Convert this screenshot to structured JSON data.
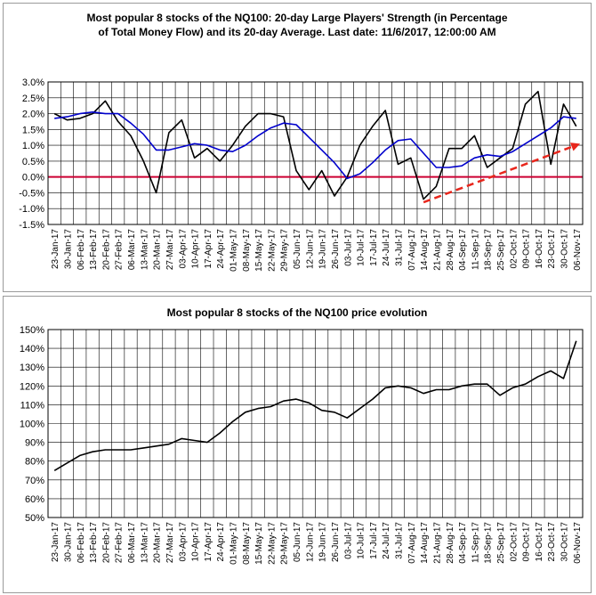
{
  "chart_data": [
    {
      "type": "line",
      "title_lines": [
        "Most popular 8 stocks of the NQ100: 20-day Large Players' Strength (in Percentage",
        "of Total Money Flow) and its 20-day Average. Last date: 11/6/2017, 12:00:00 AM"
      ],
      "y_unit": "%",
      "ylim": [
        -1.5,
        3.0
      ],
      "yticks": [
        "3.0%",
        "2.5%",
        "2.0%",
        "1.5%",
        "1.0%",
        "0.5%",
        "0.0%",
        "-0.5%",
        "-1.0%",
        "-1.5%"
      ],
      "ytick_values": [
        3.0,
        2.5,
        2.0,
        1.5,
        1.0,
        0.5,
        0.0,
        -0.5,
        -1.0,
        -1.5
      ],
      "xticks": [
        "23-Jan-17",
        "30-Jan-17",
        "06-Feb-17",
        "13-Feb-17",
        "20-Feb-17",
        "27-Feb-17",
        "06-Mar-17",
        "13-Mar-17",
        "20-Mar-17",
        "27-Mar-17",
        "03-Apr-17",
        "10-Apr-17",
        "17-Apr-17",
        "24-Apr-17",
        "01-May-17",
        "08-May-17",
        "15-May-17",
        "22-May-17",
        "29-May-17",
        "05-Jun-17",
        "12-Jun-17",
        "19-Jun-17",
        "26-Jun-17",
        "03-Jul-17",
        "10-Jul-17",
        "17-Jul-17",
        "24-Jul-17",
        "31-Jul-17",
        "07-Aug-17",
        "14-Aug-17",
        "21-Aug-17",
        "28-Aug-17",
        "04-Sep-17",
        "11-Sep-17",
        "18-Sep-17",
        "25-Sep-17",
        "02-Oct-17",
        "09-Oct-17",
        "16-Oct-17",
        "23-Oct-17",
        "30-Oct-17",
        "06-Nov-17"
      ],
      "grid": true,
      "zero_line_color": "#cc0033",
      "series": [
        {
          "color": "#000000",
          "x": [
            0,
            1,
            2,
            3,
            4,
            5,
            6,
            7,
            8,
            9,
            10,
            11,
            12,
            13,
            14,
            15,
            16,
            17,
            18,
            19,
            20,
            21,
            22,
            23,
            24,
            25,
            26,
            27,
            28,
            29,
            30,
            31,
            32,
            33,
            34,
            35,
            36,
            37,
            38,
            39,
            40,
            41
          ],
          "values": [
            2.0,
            1.8,
            1.85,
            2.0,
            2.4,
            1.75,
            1.3,
            0.5,
            -0.5,
            1.4,
            1.8,
            0.6,
            0.9,
            0.5,
            1.0,
            1.6,
            2.0,
            2.0,
            1.9,
            0.2,
            -0.4,
            0.2,
            -0.6,
            0.0,
            1.0,
            1.6,
            2.1,
            0.4,
            0.6,
            -0.7,
            -0.3,
            0.9,
            0.9,
            1.3,
            0.3,
            0.6,
            0.9,
            2.3,
            2.7,
            0.4,
            2.3,
            1.6
          ]
        },
        {
          "color": "#0000cc",
          "x": [
            0,
            1,
            2,
            3,
            4,
            5,
            6,
            7,
            8,
            9,
            10,
            11,
            12,
            13,
            14,
            15,
            16,
            17,
            18,
            19,
            20,
            21,
            22,
            23,
            24,
            25,
            26,
            27,
            28,
            29,
            30,
            31,
            32,
            33,
            34,
            35,
            36,
            37,
            38,
            39,
            40,
            41
          ],
          "values": [
            1.85,
            1.9,
            2.0,
            2.05,
            2.0,
            2.0,
            1.7,
            1.35,
            0.85,
            0.85,
            0.95,
            1.05,
            1.0,
            0.85,
            0.8,
            1.0,
            1.3,
            1.55,
            1.7,
            1.65,
            1.25,
            0.85,
            0.45,
            -0.05,
            0.1,
            0.45,
            0.85,
            1.15,
            1.2,
            0.75,
            0.3,
            0.3,
            0.35,
            0.6,
            0.7,
            0.65,
            0.8,
            1.05,
            1.3,
            1.55,
            1.9,
            1.85
          ]
        }
      ],
      "annotation": {
        "type": "dashed-arrow",
        "color": "#e8261c",
        "from": [
          29,
          -0.8
        ],
        "to": [
          41.3,
          1.05
        ]
      }
    },
    {
      "type": "line",
      "title_lines": [
        "Most popular 8 stocks of the NQ100 price evolution"
      ],
      "y_unit": "%",
      "ylim": [
        50,
        150
      ],
      "yticks": [
        "150%",
        "140%",
        "130%",
        "120%",
        "110%",
        "100%",
        "90%",
        "80%",
        "70%",
        "60%",
        "50%"
      ],
      "ytick_values": [
        150,
        140,
        130,
        120,
        110,
        100,
        90,
        80,
        70,
        60,
        50
      ],
      "xticks": [
        "23-Jan-17",
        "30-Jan-17",
        "06-Feb-17",
        "13-Feb-17",
        "20-Feb-17",
        "27-Feb-17",
        "06-Mar-17",
        "13-Mar-17",
        "20-Mar-17",
        "27-Mar-17",
        "03-Apr-17",
        "10-Apr-17",
        "17-Apr-17",
        "24-Apr-17",
        "01-May-17",
        "08-May-17",
        "15-May-17",
        "22-May-17",
        "29-May-17",
        "05-Jun-17",
        "12-Jun-17",
        "19-Jun-17",
        "26-Jun-17",
        "03-Jul-17",
        "10-Jul-17",
        "17-Jul-17",
        "24-Jul-17",
        "31-Jul-17",
        "07-Aug-17",
        "14-Aug-17",
        "21-Aug-17",
        "28-Aug-17",
        "04-Sep-17",
        "11-Sep-17",
        "18-Sep-17",
        "25-Sep-17",
        "02-Oct-17",
        "09-Oct-17",
        "16-Oct-17",
        "23-Oct-17",
        "30-Oct-17",
        "06-Nov-17"
      ],
      "grid": true,
      "series": [
        {
          "color": "#000000",
          "x": [
            0,
            1,
            2,
            3,
            4,
            5,
            6,
            7,
            8,
            9,
            10,
            11,
            12,
            13,
            14,
            15,
            16,
            17,
            18,
            19,
            20,
            21,
            22,
            23,
            24,
            25,
            26,
            27,
            28,
            29,
            30,
            31,
            32,
            33,
            34,
            35,
            36,
            37,
            38,
            39,
            40,
            41
          ],
          "values": [
            75,
            79,
            83,
            85,
            86,
            86,
            86,
            87,
            88,
            89,
            92,
            91,
            90,
            95,
            101,
            106,
            108,
            109,
            112,
            113,
            111,
            107,
            106,
            103,
            108,
            113,
            119,
            120,
            119,
            116,
            118,
            118,
            120,
            121,
            121,
            115,
            119,
            121,
            125,
            128,
            124,
            144
          ]
        }
      ]
    }
  ]
}
